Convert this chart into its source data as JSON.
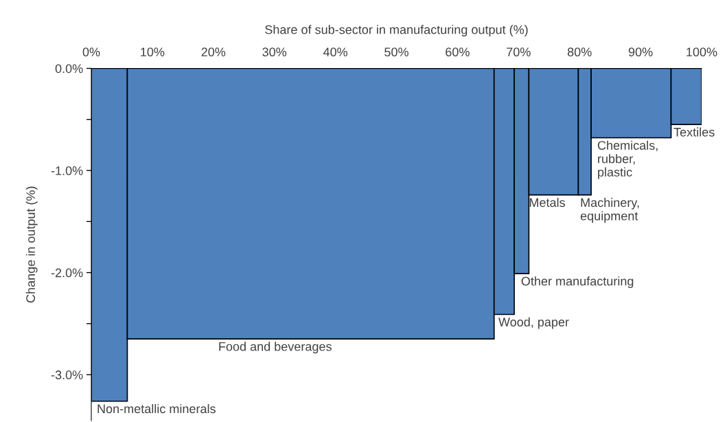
{
  "chart_data": {
    "type": "histogram",
    "xlabel": "Share of sub-sector in manufacturing output (%)",
    "ylabel": "Change in output (%)",
    "bins": [
      0,
      5.9,
      66.0,
      69.3,
      71.7,
      79.8,
      81.9,
      95.0,
      100
    ],
    "values": [
      -3.26,
      -2.65,
      -2.41,
      -2.01,
      -1.24,
      -1.24,
      -0.68,
      -0.55
    ],
    "color": "#4f81bd",
    "xlim": [
      0,
      100
    ],
    "xticks": [
      {
        "value": 0,
        "label": "0%"
      },
      {
        "value": 10,
        "label": "10%"
      },
      {
        "value": 20,
        "label": "20%"
      },
      {
        "value": 30,
        "label": "30%"
      },
      {
        "value": 40,
        "label": "40%"
      },
      {
        "value": 50,
        "label": "50%"
      },
      {
        "value": 60,
        "label": "60%"
      },
      {
        "value": 70,
        "label": "70%"
      },
      {
        "value": 80,
        "label": "80%"
      },
      {
        "value": 90,
        "label": "90%"
      },
      {
        "value": 100,
        "label": "100%"
      }
    ],
    "ylim": [
      -3.45,
      0
    ],
    "yticks": [
      {
        "value": 0,
        "label": "0.0%"
      },
      {
        "value": -0.5,
        "label": null
      },
      {
        "value": -1,
        "label": "-1.0%"
      },
      {
        "value": -1.5,
        "label": null
      },
      {
        "value": -2,
        "label": "-2.0%"
      },
      {
        "value": -2.5,
        "label": null
      },
      {
        "value": -3,
        "label": "-3.0%"
      }
    ],
    "grid": false,
    "annotations": [
      {
        "text": "Non-metallic minerals",
        "x": 0.9,
        "y": -3.26
      },
      {
        "text": "Food and beverages",
        "x": 20.8,
        "y": -2.65
      },
      {
        "text": "Wood, paper",
        "x": 66.7,
        "y": -2.41
      },
      {
        "text": "Other manufacturing",
        "x": 70.4,
        "y": -2.01
      },
      {
        "text": "Metals",
        "x": 71.7,
        "y": -1.24
      },
      {
        "text": "Machinery,\nequipment",
        "x": 80.1,
        "y": -1.24
      },
      {
        "text": "Chemicals,\nrubber,\nplastic",
        "x": 82.9,
        "y": -0.68
      },
      {
        "text": "Textiles",
        "x": 95.4,
        "y": -0.55
      }
    ]
  }
}
